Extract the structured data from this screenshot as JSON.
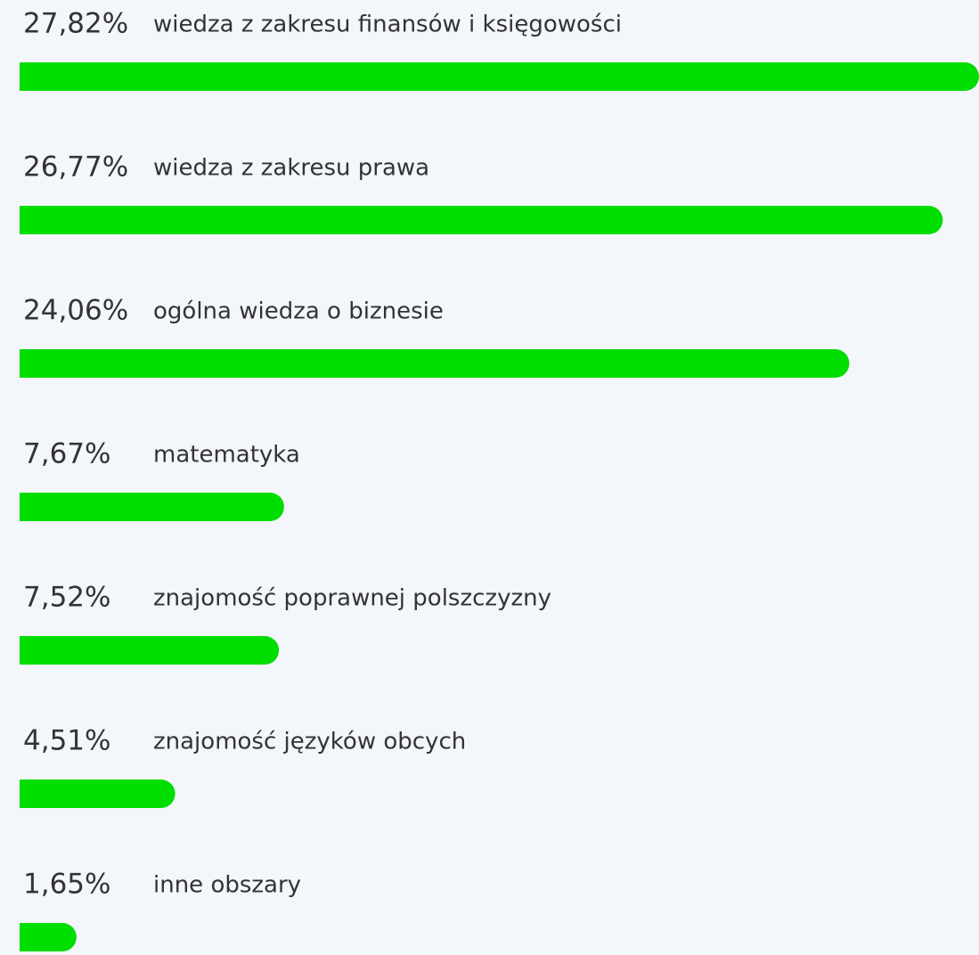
{
  "chart_data": {
    "type": "bar",
    "categories": [
      "wiedza z zakresu finansów i księgowości",
      "wiedza z zakresu prawa",
      "ogólna wiedza o biznesie",
      "matematyka",
      "znajomość poprawnej polszczyzny",
      "znajomość języków obcych",
      "inne obszary"
    ],
    "values": [
      27.82,
      26.77,
      24.06,
      7.67,
      7.52,
      4.51,
      1.65
    ],
    "value_labels": [
      "27,82%",
      "26,77%",
      "24,06%",
      "7,67%",
      "7,52%",
      "4,51%",
      "1,65%"
    ],
    "color": "#00dd00"
  }
}
